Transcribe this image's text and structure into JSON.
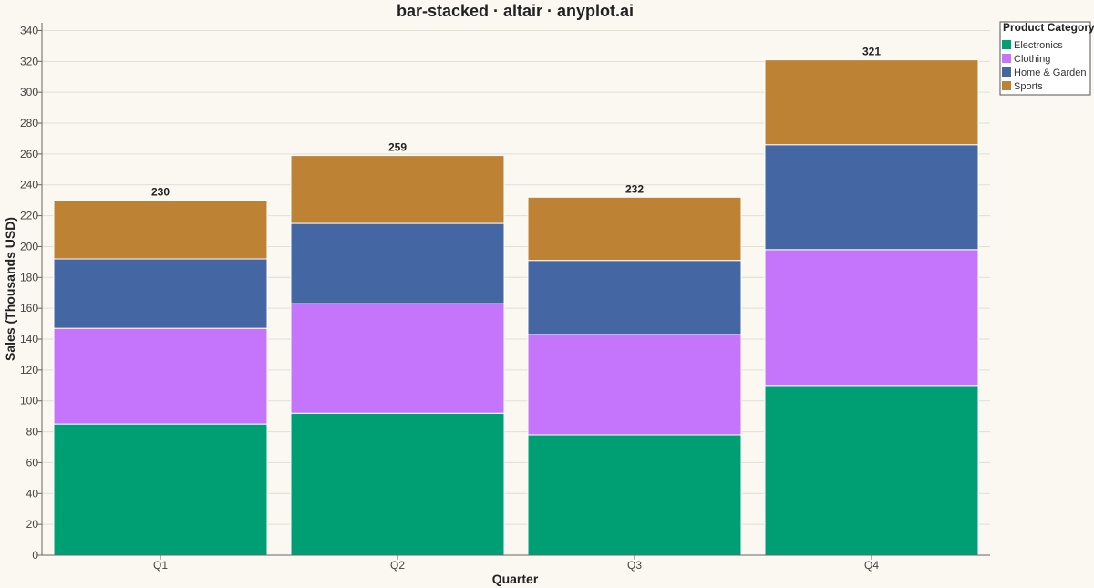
{
  "chart_data": {
    "type": "bar",
    "stacked": true,
    "title": "bar-stacked · altair · anyplot.ai",
    "xlabel": "Quarter",
    "ylabel": "Sales (Thousands USD)",
    "ylim": [
      0,
      345
    ],
    "yticks": [
      0,
      20,
      40,
      60,
      80,
      100,
      120,
      140,
      160,
      180,
      200,
      220,
      240,
      260,
      280,
      300,
      320,
      340
    ],
    "grid": true,
    "categories": [
      "Q1",
      "Q2",
      "Q3",
      "Q4"
    ],
    "series": [
      {
        "name": "Electronics",
        "color": "#009e73",
        "values": [
          85,
          92,
          78,
          110
        ]
      },
      {
        "name": "Clothing",
        "color": "#c475fc",
        "values": [
          62,
          71,
          65,
          88
        ]
      },
      {
        "name": "Home & Garden",
        "color": "#4467a4",
        "values": [
          45,
          52,
          48,
          68
        ]
      },
      {
        "name": "Sports",
        "color": "#bd8233",
        "values": [
          38,
          44,
          41,
          55
        ]
      }
    ],
    "totals": [
      "230",
      "259",
      "232",
      "321"
    ],
    "legend": {
      "title": "Product Category",
      "position": "top-right"
    }
  }
}
